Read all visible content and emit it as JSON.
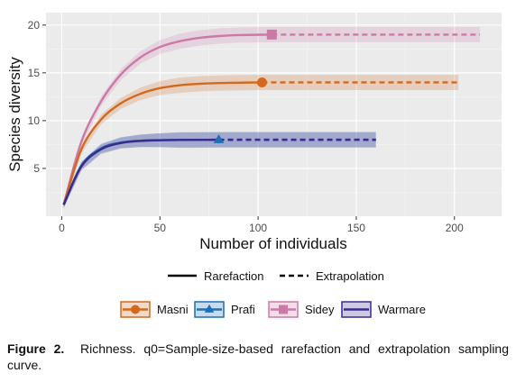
{
  "chart_data": {
    "type": "line",
    "xlabel": "Number of individuals",
    "ylabel": "Species diversity",
    "xlim": [
      -8,
      224
    ],
    "ylim": [
      0,
      21.3
    ],
    "x_ticks": [
      0,
      50,
      100,
      150,
      200
    ],
    "y_ticks": [
      5,
      10,
      15,
      20
    ],
    "grid": true,
    "legend_position": "bottom",
    "linetype_legend": [
      {
        "label": "Rarefaction",
        "style": "solid"
      },
      {
        "label": "Extrapolation",
        "style": "dashed"
      }
    ],
    "series": [
      {
        "name": "Masni",
        "color": "#D2691E",
        "marker": "circle",
        "observed": {
          "x": 102,
          "y": 14
        },
        "asymptote": 14,
        "extrapolation_end": 202,
        "x": [
          1,
          10,
          20,
          30,
          40,
          50,
          60,
          70,
          80,
          90,
          102,
          140,
          202
        ],
        "y": [
          1.2,
          7.0,
          10.1,
          11.8,
          12.8,
          13.4,
          13.7,
          13.85,
          13.93,
          13.97,
          14,
          14,
          14
        ]
      },
      {
        "name": "Prafi",
        "color": "#1F6FB4",
        "marker": "triangle",
        "observed": {
          "x": 80,
          "y": 8
        },
        "asymptote": 8,
        "extrapolation_end": 160,
        "x": [
          1,
          10,
          20,
          30,
          40,
          50,
          60,
          70,
          80,
          120,
          160
        ],
        "y": [
          1.2,
          5.3,
          7.1,
          7.7,
          7.9,
          7.96,
          7.98,
          7.99,
          8,
          8,
          8
        ]
      },
      {
        "name": "Sidey",
        "color": "#CC79A7",
        "marker": "square",
        "observed": {
          "x": 107,
          "y": 19
        },
        "asymptote": 19,
        "extrapolation_end": 213,
        "x": [
          1,
          10,
          20,
          30,
          40,
          50,
          60,
          70,
          80,
          90,
          107,
          150,
          213
        ],
        "y": [
          1.2,
          7.8,
          12.0,
          14.8,
          16.6,
          17.7,
          18.3,
          18.65,
          18.85,
          18.95,
          19,
          19,
          19
        ]
      },
      {
        "name": "Warmare",
        "color": "#3B2A8C",
        "marker": "none",
        "observed": {
          "x": 80,
          "y": 8
        },
        "asymptote": 8,
        "extrapolation_end": 160,
        "x": [
          1,
          10,
          20,
          30,
          40,
          50,
          60,
          70,
          80,
          120,
          160
        ],
        "y": [
          1.2,
          5.2,
          7.0,
          7.65,
          7.88,
          7.95,
          7.98,
          7.99,
          8,
          8,
          8
        ]
      }
    ]
  },
  "caption": {
    "label": "Figure 2.",
    "text": "Richness. q0=Sample-size-based rarefaction and extrapolation sampling curve."
  }
}
